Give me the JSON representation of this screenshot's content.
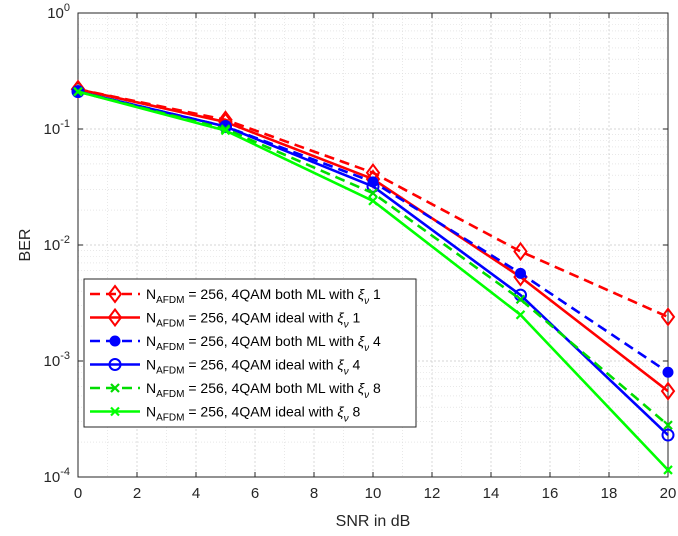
{
  "chart_data": {
    "type": "line",
    "xlabel": "SNR in dB",
    "ylabel": "BER",
    "x": [
      0,
      5,
      10,
      15,
      20
    ],
    "xlim": [
      0,
      20
    ],
    "ylim": [
      0.0001,
      1
    ],
    "yscale": "log",
    "grid": true,
    "legend_position": "bottom-left",
    "xticks": [
      "0",
      "2",
      "4",
      "6",
      "8",
      "10",
      "12",
      "14",
      "16",
      "18",
      "20"
    ],
    "yticks": [
      {
        "base": "10",
        "exp": "0"
      },
      {
        "base": "10",
        "exp": "-1"
      },
      {
        "base": "10",
        "exp": "-2"
      },
      {
        "base": "10",
        "exp": "-3"
      },
      {
        "base": "10",
        "exp": "-4"
      }
    ],
    "series": [
      {
        "label_pre": "N",
        "label_sub": "AFDM",
        "label_post": " = 256, 4QAM both ML with ",
        "label_xi": "ξ",
        "label_nu": "ν",
        "label_end": " 1",
        "values": [
          0.22,
          0.12,
          0.042,
          0.0088,
          0.0024
        ],
        "color": "#ff0000",
        "dash": true,
        "marker": "diamond"
      },
      {
        "label_pre": "N",
        "label_sub": "AFDM",
        "label_post": " = 256, 4QAM ideal with ",
        "label_xi": "ξ",
        "label_nu": "ν",
        "label_end": " 1",
        "values": [
          0.22,
          0.115,
          0.037,
          0.0053,
          0.00055
        ],
        "color": "#ff0000",
        "dash": false,
        "marker": "diamond"
      },
      {
        "label_pre": "N",
        "label_sub": "AFDM",
        "label_post": " = 256, 4QAM both ML with ",
        "label_xi": "ξ",
        "label_nu": "ν",
        "label_end": " 4",
        "values": [
          0.21,
          0.105,
          0.035,
          0.0057,
          0.0008
        ],
        "color": "#0000ff",
        "dash": true,
        "marker": "dot"
      },
      {
        "label_pre": "N",
        "label_sub": "AFDM",
        "label_post": " = 256, 4QAM ideal with ",
        "label_xi": "ξ",
        "label_nu": "ν",
        "label_end": " 4",
        "values": [
          0.21,
          0.105,
          0.032,
          0.0037,
          0.00023
        ],
        "color": "#0000ff",
        "dash": false,
        "marker": "circle"
      },
      {
        "label_pre": "N",
        "label_sub": "AFDM",
        "label_post": " = 256, 4QAM both ML with ",
        "label_xi": "ξ",
        "label_nu": "ν",
        "label_end": " 8",
        "values": [
          0.21,
          0.1,
          0.028,
          0.0034,
          0.00028
        ],
        "color": "#00dd00",
        "dash": true,
        "marker": "x"
      },
      {
        "label_pre": "N",
        "label_sub": "AFDM",
        "label_post": " = 256, 4QAM ideal with ",
        "label_xi": "ξ",
        "label_nu": "ν",
        "label_end": " 8",
        "values": [
          0.21,
          0.097,
          0.024,
          0.0025,
          0.000115
        ],
        "color": "#00ff00",
        "dash": false,
        "marker": "x"
      }
    ]
  }
}
